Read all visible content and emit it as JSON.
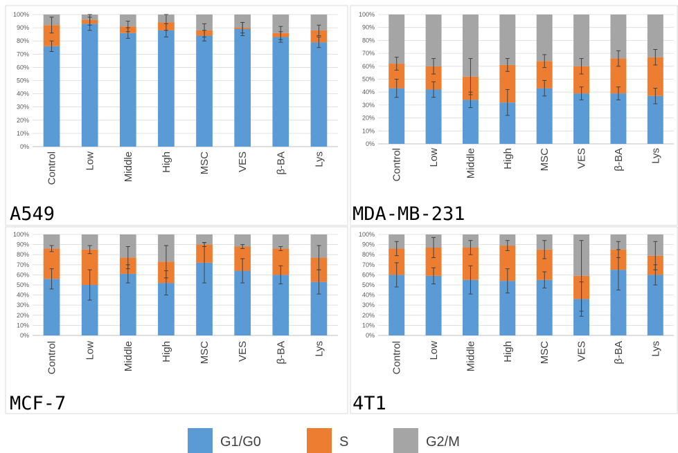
{
  "chart_data": [
    {
      "type": "bar",
      "stacked": true,
      "title": "A549",
      "categories": [
        "Control",
        "Low",
        "Middle",
        "High",
        "MSC",
        "VES",
        "β-BA",
        "Lys"
      ],
      "series": [
        {
          "name": "G1/G0",
          "color": "#5b9bd5",
          "values": [
            76,
            93,
            86,
            88,
            84,
            89,
            83,
            79
          ],
          "err": [
            4,
            5,
            4,
            5,
            4,
            5,
            4,
            4
          ]
        },
        {
          "name": "S",
          "color": "#ed7d31",
          "values": [
            16,
            3,
            5,
            6,
            4,
            1,
            3,
            9
          ],
          "err": [
            6,
            4,
            4,
            6,
            5,
            4,
            5,
            4
          ]
        },
        {
          "name": "G2/M",
          "color": "#a5a5a5",
          "values": [
            8,
            4,
            9,
            6,
            12,
            10,
            14,
            12
          ]
        }
      ],
      "ylim": [
        0,
        100
      ],
      "yticks": [
        "0%",
        "10%",
        "20%",
        "30%",
        "40%",
        "50%",
        "60%",
        "70%",
        "80%",
        "90%",
        "100%"
      ]
    },
    {
      "type": "bar",
      "stacked": true,
      "title": "MDA-MB-231",
      "categories": [
        "Control",
        "Low",
        "Middle",
        "High",
        "MSC",
        "VES",
        "β-BA",
        "Lys"
      ],
      "series": [
        {
          "name": "G1/G0",
          "color": "#5b9bd5",
          "values": [
            43,
            42,
            34,
            32,
            43,
            39,
            39,
            37
          ],
          "err": [
            7,
            6,
            6,
            10,
            6,
            5,
            5,
            6
          ]
        },
        {
          "name": "S",
          "color": "#ed7d31",
          "values": [
            19,
            18,
            18,
            29,
            21,
            21,
            27,
            30
          ],
          "err": [
            5,
            6,
            14,
            5,
            5,
            6,
            6,
            6
          ]
        },
        {
          "name": "G2/M",
          "color": "#a5a5a5",
          "values": [
            38,
            40,
            48,
            39,
            36,
            40,
            34,
            33
          ]
        }
      ],
      "ylim": [
        0,
        100
      ],
      "yticks": [
        "0%",
        "10%",
        "20%",
        "30%",
        "40%",
        "50%",
        "60%",
        "70%",
        "80%",
        "90%",
        "100%"
      ]
    },
    {
      "type": "bar",
      "stacked": true,
      "title": "MCF-7",
      "categories": [
        "Control",
        "Low",
        "Middle",
        "High",
        "MSC",
        "VES",
        "β-BA",
        "Lys"
      ],
      "series": [
        {
          "name": "G1/G0",
          "color": "#5b9bd5",
          "values": [
            56,
            50,
            61,
            52,
            72,
            64,
            60,
            53
          ],
          "err": [
            10,
            15,
            9,
            12,
            20,
            12,
            9,
            12
          ]
        },
        {
          "name": "S",
          "color": "#ed7d31",
          "values": [
            30,
            35,
            16,
            21,
            18,
            24,
            26,
            24
          ],
          "err": [
            3,
            4,
            11,
            16,
            2,
            2,
            2,
            12
          ]
        },
        {
          "name": "G2/M",
          "color": "#a5a5a5",
          "values": [
            14,
            15,
            23,
            27,
            10,
            12,
            14,
            23
          ]
        }
      ],
      "ylim": [
        0,
        100
      ],
      "yticks": [
        "0%",
        "10%",
        "20%",
        "30%",
        "40%",
        "50%",
        "60%",
        "70%",
        "80%",
        "90%",
        "100%"
      ]
    },
    {
      "type": "bar",
      "stacked": true,
      "title": "4T1",
      "categories": [
        "Control",
        "Low",
        "Middle",
        "High",
        "MSC",
        "VES",
        "β-BA",
        "Lys"
      ],
      "series": [
        {
          "name": "G1/G0",
          "color": "#5b9bd5",
          "values": [
            60,
            59,
            55,
            54,
            55,
            36,
            65,
            60
          ],
          "err": [
            12,
            8,
            14,
            12,
            8,
            17,
            20,
            10
          ]
        },
        {
          "name": "S",
          "color": "#ed7d31",
          "values": [
            26,
            28,
            32,
            35,
            30,
            23,
            20,
            19
          ],
          "err": [
            7,
            10,
            7,
            5,
            9,
            35,
            8,
            14
          ]
        },
        {
          "name": "G2/M",
          "color": "#a5a5a5",
          "values": [
            14,
            13,
            13,
            11,
            15,
            41,
            15,
            21
          ]
        }
      ],
      "ylim": [
        0,
        100
      ],
      "yticks": [
        "0%",
        "10%",
        "20%",
        "30%",
        "40%",
        "50%",
        "60%",
        "70%",
        "80%",
        "90%",
        "100%"
      ]
    }
  ],
  "legend": {
    "items": [
      {
        "label": "G1/G0",
        "color": "#5b9bd5"
      },
      {
        "label": "S",
        "color": "#ed7d31"
      },
      {
        "label": "G2/M",
        "color": "#a5a5a5"
      }
    ]
  }
}
